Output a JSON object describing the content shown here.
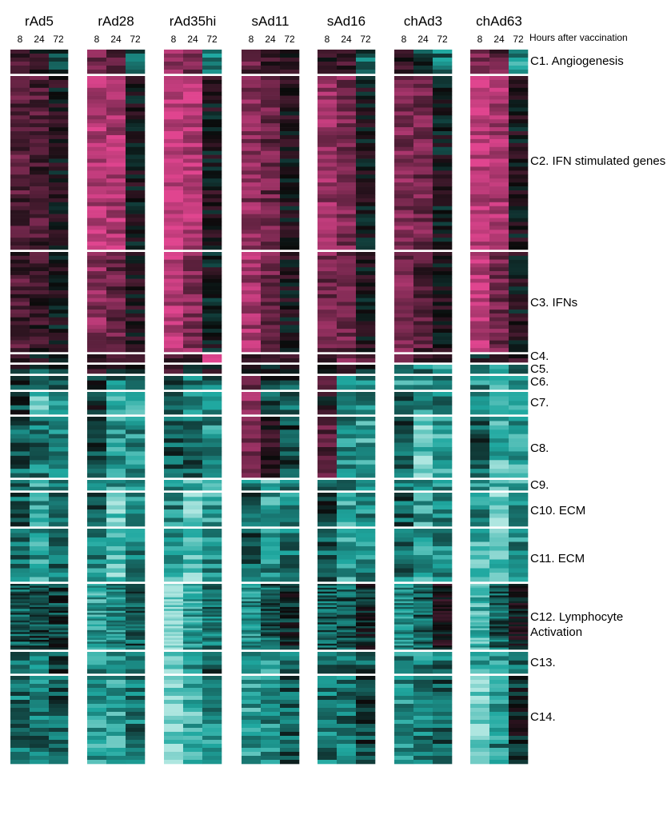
{
  "chart_data": {
    "type": "heatmap",
    "title": "",
    "xlabel": "Hours after vaccination",
    "ylabel": "",
    "vectors": [
      "rAd5",
      "rAd28",
      "rAd35hi",
      "sAd11",
      "sAd16",
      "chAd3",
      "chAd63"
    ],
    "timepoints": [
      "8",
      "24",
      "72"
    ],
    "colors": {
      "high": "#e0458f",
      "zero": "#0a0a0a",
      "low": "#aee6e0",
      "mid_low": "#1fa8a0"
    },
    "scale": {
      "min": -1,
      "max": 1
    },
    "clusters": [
      {
        "label": "C1. Angiogenesis",
        "rows": 6,
        "values": [
          [
            0.2,
            0.1,
            -0.2
          ],
          [
            0.5,
            0.3,
            -0.3
          ],
          [
            0.6,
            0.5,
            -0.4
          ],
          [
            0.4,
            0.3,
            0.1
          ],
          [
            0.2,
            0.2,
            -0.3
          ],
          [
            0.1,
            -0.2,
            -0.4
          ],
          [
            0.5,
            0.4,
            -0.5
          ]
        ]
      },
      {
        "label": "C2. IFN stimulated genes",
        "rows": 44,
        "values": [
          [
            0.35,
            0.3,
            0.05
          ],
          [
            0.8,
            0.75,
            0.05
          ],
          [
            0.9,
            0.8,
            0.05
          ],
          [
            0.6,
            0.45,
            0.05
          ],
          [
            0.65,
            0.55,
            0.05
          ],
          [
            0.55,
            0.5,
            0.0
          ],
          [
            0.85,
            0.75,
            0.05
          ]
        ]
      },
      {
        "label": "C3. IFNs",
        "rows": 26,
        "values": [
          [
            0.3,
            0.2,
            0.0
          ],
          [
            0.6,
            0.45,
            0.1
          ],
          [
            0.8,
            0.6,
            0.0
          ],
          [
            0.7,
            0.45,
            0.05
          ],
          [
            0.5,
            0.45,
            0.05
          ],
          [
            0.5,
            0.35,
            0.05
          ],
          [
            0.85,
            0.5,
            0.05
          ]
        ]
      },
      {
        "label": "C4.",
        "rows": 2,
        "values": [
          [
            0.1,
            0.0,
            -0.1
          ],
          [
            0.2,
            0.2,
            0.2
          ],
          [
            0.3,
            0.3,
            0.8
          ],
          [
            0.0,
            0.3,
            0.4
          ],
          [
            0.0,
            0.6,
            0.4
          ],
          [
            0.3,
            0.3,
            0.2
          ],
          [
            0.0,
            0.3,
            0.2
          ]
        ]
      },
      {
        "label": "C5.",
        "rows": 2,
        "values": [
          [
            0.0,
            -0.2,
            -0.2
          ],
          [
            0.1,
            0.0,
            -0.1
          ],
          [
            0.2,
            0.0,
            0.0
          ],
          [
            0.2,
            0.0,
            0.0
          ],
          [
            0.2,
            0.0,
            0.0
          ],
          [
            -0.3,
            -0.4,
            -0.5
          ],
          [
            -0.3,
            -0.5,
            -0.4
          ]
        ]
      },
      {
        "label": "C6.",
        "rows": 3,
        "values": [
          [
            -0.2,
            -0.4,
            -0.4
          ],
          [
            -0.2,
            -0.4,
            -0.3
          ],
          [
            -0.2,
            -0.4,
            -0.4
          ],
          [
            0.4,
            -0.2,
            -0.2
          ],
          [
            0.3,
            -0.4,
            -0.4
          ],
          [
            -0.6,
            -0.5,
            -0.5
          ],
          [
            -0.5,
            -0.6,
            -0.5
          ]
        ]
      },
      {
        "label": "C7.",
        "rows": 5,
        "values": [
          [
            -0.2,
            -0.7,
            -0.5
          ],
          [
            -0.1,
            -0.7,
            -0.6
          ],
          [
            -0.2,
            -0.4,
            -0.5
          ],
          [
            0.6,
            -0.3,
            -0.4
          ],
          [
            0.1,
            -0.4,
            -0.5
          ],
          [
            -0.3,
            -0.5,
            -0.4
          ],
          [
            -0.4,
            -0.8,
            -0.6
          ]
        ]
      },
      {
        "label": "C8.",
        "rows": 14,
        "values": [
          [
            -0.3,
            -0.4,
            -0.4
          ],
          [
            -0.2,
            -0.6,
            -0.5
          ],
          [
            -0.3,
            -0.3,
            -0.5
          ],
          [
            0.5,
            0.2,
            -0.2
          ],
          [
            0.4,
            -0.5,
            -0.6
          ],
          [
            -0.3,
            -0.8,
            -0.6
          ],
          [
            -0.3,
            -0.7,
            -0.6
          ]
        ]
      },
      {
        "label": "C9.",
        "rows": 3,
        "values": [
          [
            -0.4,
            -0.6,
            -0.5
          ],
          [
            -0.3,
            -0.6,
            -0.5
          ],
          [
            -0.5,
            -0.7,
            -0.6
          ],
          [
            -0.4,
            -0.7,
            -0.5
          ],
          [
            -0.2,
            -0.5,
            -0.5
          ],
          [
            -0.4,
            -0.6,
            -0.5
          ],
          [
            -0.5,
            -0.7,
            -0.6
          ]
        ]
      },
      {
        "label": "C10. ECM",
        "rows": 8,
        "values": [
          [
            -0.3,
            -0.6,
            -0.4
          ],
          [
            -0.3,
            -0.8,
            -0.5
          ],
          [
            -0.5,
            -0.8,
            -0.6
          ],
          [
            -0.3,
            -0.6,
            -0.5
          ],
          [
            -0.2,
            -0.6,
            -0.5
          ],
          [
            -0.3,
            -0.6,
            -0.5
          ],
          [
            -0.5,
            -0.9,
            -0.5
          ]
        ]
      },
      {
        "label": "C11. ECM",
        "rows": 12,
        "values": [
          [
            -0.4,
            -0.6,
            -0.4
          ],
          [
            -0.5,
            -0.8,
            -0.5
          ],
          [
            -0.6,
            -0.8,
            -0.5
          ],
          [
            -0.3,
            -0.5,
            -0.4
          ],
          [
            -0.3,
            -0.6,
            -0.5
          ],
          [
            -0.4,
            -0.6,
            -0.5
          ],
          [
            -0.7,
            -0.8,
            -0.5
          ]
        ]
      },
      {
        "label": "C12. Lymphocyte Activation",
        "rows": 34,
        "values": [
          [
            -0.3,
            -0.2,
            -0.2
          ],
          [
            -0.6,
            -0.5,
            -0.3
          ],
          [
            -0.9,
            -0.6,
            -0.4
          ],
          [
            -0.5,
            -0.3,
            -0.1
          ],
          [
            -0.3,
            -0.3,
            -0.1
          ],
          [
            -0.5,
            -0.3,
            0.05
          ],
          [
            -0.7,
            -0.3,
            0.0
          ]
        ]
      },
      {
        "label": "C13.",
        "rows": 5,
        "values": [
          [
            -0.3,
            -0.5,
            -0.2
          ],
          [
            -0.5,
            -0.6,
            -0.3
          ],
          [
            -0.9,
            -0.5,
            -0.3
          ],
          [
            -0.6,
            -0.6,
            -0.4
          ],
          [
            -0.3,
            -0.4,
            -0.3
          ],
          [
            -0.5,
            -0.5,
            -0.4
          ],
          [
            -0.6,
            -0.5,
            -0.3
          ]
        ]
      },
      {
        "label": "C14.",
        "rows": 22,
        "values": [
          [
            -0.4,
            -0.4,
            -0.3
          ],
          [
            -0.6,
            -0.6,
            -0.4
          ],
          [
            -0.9,
            -0.7,
            -0.5
          ],
          [
            -0.6,
            -0.5,
            -0.3
          ],
          [
            -0.4,
            -0.4,
            -0.2
          ],
          [
            -0.5,
            -0.4,
            -0.3
          ],
          [
            -0.9,
            -0.5,
            -0.1
          ]
        ]
      }
    ]
  }
}
